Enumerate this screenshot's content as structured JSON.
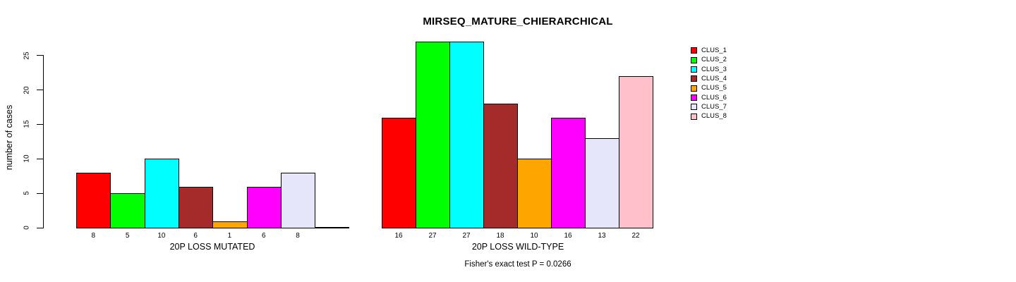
{
  "title": "MIRSEQ_MATURE_CHIERARCHICAL",
  "footer": "Fisher's exact test P = 0.0266",
  "y_axis": {
    "label": "number of cases",
    "ticks": [
      0,
      5,
      10,
      15,
      20,
      25
    ]
  },
  "legend": {
    "position": "right",
    "entries": [
      {
        "label": "CLUS_1",
        "color": "#FF0000"
      },
      {
        "label": "CLUS_2",
        "color": "#00FF00"
      },
      {
        "label": "CLUS_3",
        "color": "#00FFFF"
      },
      {
        "label": "CLUS_4",
        "color": "#A52A2A"
      },
      {
        "label": "CLUS_5",
        "color": "#FFA500"
      },
      {
        "label": "CLUS_6",
        "color": "#FF00FF"
      },
      {
        "label": "CLUS_7",
        "color": "#E6E6FA"
      },
      {
        "label": "CLUS_8",
        "color": "#FFC0CB"
      }
    ]
  },
  "chart_data": [
    {
      "type": "bar",
      "title": "MIRSEQ_MATURE_CHIERARCHICAL",
      "xlabel": "20P LOSS MUTATED",
      "ylabel": "number of cases",
      "categories": [
        "CLUS_1",
        "CLUS_2",
        "CLUS_3",
        "CLUS_4",
        "CLUS_5",
        "CLUS_6",
        "CLUS_7",
        "CLUS_8"
      ],
      "values": [
        8,
        5,
        10,
        6,
        1,
        6,
        8,
        0
      ],
      "bar_value_labels": [
        "8",
        "5",
        "10",
        "6",
        "1",
        "6",
        "8",
        ""
      ],
      "colors": [
        "#FF0000",
        "#00FF00",
        "#00FFFF",
        "#A52A2A",
        "#FFA500",
        "#FF00FF",
        "#E6E6FA",
        "#FFC0CB"
      ],
      "ylim": [
        0,
        25
      ],
      "grid": false,
      "legend_position": "right"
    },
    {
      "type": "bar",
      "title": "MIRSEQ_MATURE_CHIERARCHICAL",
      "xlabel": "20P LOSS WILD-TYPE",
      "ylabel": "number of cases",
      "categories": [
        "CLUS_1",
        "CLUS_2",
        "CLUS_3",
        "CLUS_4",
        "CLUS_5",
        "CLUS_6",
        "CLUS_7",
        "CLUS_8"
      ],
      "values": [
        16,
        27,
        27,
        18,
        10,
        16,
        13,
        22
      ],
      "bar_value_labels": [
        "16",
        "27",
        "27",
        "18",
        "10",
        "16",
        "13",
        "22"
      ],
      "colors": [
        "#FF0000",
        "#00FF00",
        "#00FFFF",
        "#A52A2A",
        "#FFA500",
        "#FF00FF",
        "#E6E6FA",
        "#FFC0CB"
      ],
      "ylim": [
        0,
        25
      ],
      "grid": false,
      "legend_position": "right"
    }
  ]
}
